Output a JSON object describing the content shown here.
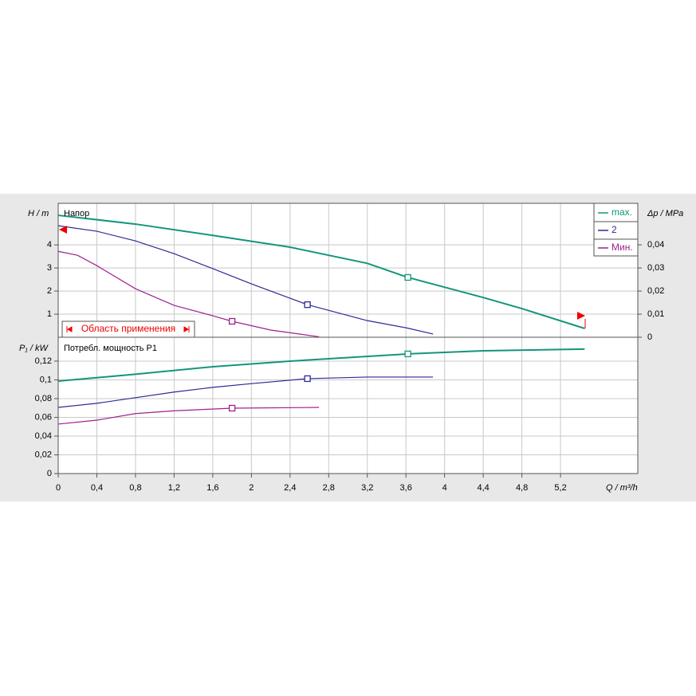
{
  "chart_data": [
    {
      "type": "line",
      "title": "Напор",
      "ylabel": "H / m",
      "y2label": "Δp / MPa",
      "annotation": "Область применения",
      "xlim": [
        0,
        6
      ],
      "ylim": [
        0,
        5.8
      ],
      "yticks": [
        1,
        2,
        3,
        4
      ],
      "y2lim": [
        0,
        0.058
      ],
      "y2ticks": [
        0,
        {
          "value": 0.01,
          "label": "0,01"
        },
        {
          "value": 0.02,
          "label": "0,02"
        },
        {
          "value": 0.03,
          "label": "0,03"
        },
        {
          "value": 0.04,
          "label": "0,04"
        }
      ],
      "grid": true,
      "series": [
        {
          "name": "max.",
          "color": "#14957a",
          "x": [
            0,
            0.8,
            1.6,
            2.4,
            3.2,
            3.62,
            4.4,
            4.8,
            5.45
          ],
          "values": [
            5.28,
            4.9,
            4.41,
            3.9,
            3.2,
            2.59,
            1.72,
            1.24,
            0.38
          ],
          "marker": {
            "x": 3.62,
            "y": 2.59
          }
        },
        {
          "name": "2",
          "color": "#2c2a96",
          "x": [
            0,
            0.4,
            0.8,
            1.2,
            1.6,
            2.0,
            2.4,
            2.58,
            3.2,
            3.6,
            3.88
          ],
          "values": [
            4.83,
            4.59,
            4.17,
            3.62,
            2.97,
            2.31,
            1.69,
            1.41,
            0.72,
            0.41,
            0.14
          ],
          "marker": {
            "x": 2.58,
            "y": 1.41
          }
        },
        {
          "name": "Мин.",
          "color": "#a0208c",
          "x": [
            0,
            0.2,
            0.4,
            0.8,
            1.2,
            1.6,
            1.8,
            2.2,
            2.7
          ],
          "values": [
            3.72,
            3.55,
            3.1,
            2.1,
            1.38,
            0.93,
            0.69,
            0.31,
            0.02
          ],
          "marker": {
            "x": 1.8,
            "y": 0.69
          }
        }
      ]
    },
    {
      "type": "line",
      "title": "Потребл. мощность P1",
      "ylabel": "P₁ / kW",
      "xlabel": "Q / m³/h",
      "xlim": [
        0,
        6
      ],
      "xticks": [
        0,
        {
          "value": 0.4,
          "label": "0,4"
        },
        {
          "value": 0.8,
          "label": "0,8"
        },
        {
          "value": 1.2,
          "label": "1,2"
        },
        {
          "value": 1.6,
          "label": "1,6"
        },
        2,
        {
          "value": 2.4,
          "label": "2,4"
        },
        {
          "value": 2.8,
          "label": "2,8"
        },
        {
          "value": 3.2,
          "label": "3,2"
        },
        {
          "value": 3.6,
          "label": "3,6"
        },
        4,
        {
          "value": 4.4,
          "label": "4,4"
        },
        {
          "value": 4.8,
          "label": "4,8"
        },
        {
          "value": 5.2,
          "label": "5,2"
        }
      ],
      "ylim": [
        0,
        0.1455
      ],
      "yticks": [
        0,
        {
          "value": 0.02,
          "label": "0,02"
        },
        {
          "value": 0.04,
          "label": "0,04"
        },
        {
          "value": 0.06,
          "label": "0,06"
        },
        {
          "value": 0.08,
          "label": "0,08"
        },
        {
          "value": 0.1,
          "label": "0,1"
        },
        {
          "value": 0.12,
          "label": "0,12"
        }
      ],
      "grid": true,
      "series": [
        {
          "color": "#14957a",
          "x": [
            0,
            0.8,
            1.6,
            2.4,
            3.62,
            4.4,
            5.45
          ],
          "values": [
            0.0987,
            0.106,
            0.114,
            0.12,
            0.1277,
            0.131,
            0.1328
          ],
          "marker": {
            "x": 3.62,
            "y": 0.1277
          }
        },
        {
          "color": "#2c2a96",
          "x": [
            0,
            0.4,
            0.8,
            1.2,
            1.6,
            2.0,
            2.58,
            3.2,
            3.88
          ],
          "values": [
            0.0706,
            0.075,
            0.081,
            0.087,
            0.092,
            0.096,
            0.1013,
            0.103,
            0.103
          ],
          "marker": {
            "x": 2.58,
            "y": 0.1013
          }
        },
        {
          "color": "#a0208c",
          "x": [
            0,
            0.4,
            0.8,
            1.2,
            1.8,
            2.7
          ],
          "values": [
            0.0528,
            0.057,
            0.064,
            0.067,
            0.0698,
            0.0706
          ],
          "marker": {
            "x": 1.8,
            "y": 0.0698
          }
        }
      ]
    }
  ]
}
